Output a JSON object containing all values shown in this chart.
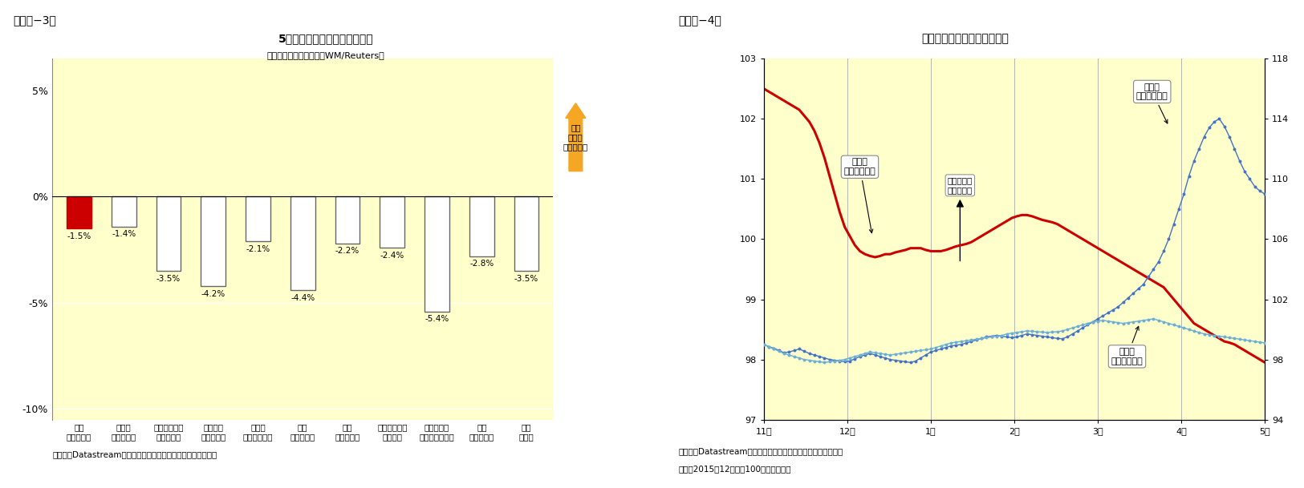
{
  "fig3": {
    "title": "5月の主要新興国通貨の変化率",
    "subtitle": "（対米ドル、前月末比、WM/Reuters）",
    "categories": [
      "中国\n（人民元）",
      "インド\n（ルピー）",
      "インドネシア\n（ルピア）",
      "ブラジル\n（レアル）",
      "ロシア\n（ルーブル）",
      "韓国\n（ウォン）",
      "タイ\n（バーツ）",
      "シンガポール\n（ドル）",
      "マレーシア\n（リンギット）",
      "欧州\n（ユーロ）",
      "日本\n（円）"
    ],
    "values": [
      -1.5,
      -1.4,
      -3.5,
      -4.2,
      -2.1,
      -4.4,
      -2.2,
      -2.4,
      -5.4,
      -2.8,
      -3.5
    ],
    "bar_colors": [
      "#cc0000",
      "#ffffff",
      "#ffffff",
      "#ffffff",
      "#ffffff",
      "#ffffff",
      "#ffffff",
      "#ffffff",
      "#ffffff",
      "#ffffff",
      "#ffffff"
    ],
    "bar_edgecolors": [
      "#cc0000",
      "#666666",
      "#666666",
      "#666666",
      "#666666",
      "#666666",
      "#666666",
      "#666666",
      "#666666",
      "#666666",
      "#666666"
    ],
    "ylim": [
      -10.5,
      6.5
    ],
    "yticks": [
      -10,
      -5,
      0,
      5
    ],
    "yticklabels": [
      "-10%",
      "-5%",
      "0%",
      "5%"
    ],
    "bg_color": "#ffffcc",
    "footnote": "（資料）Datastreamのデータを元にニッセイ基礎研究所で作成",
    "arrow_label": "自国\n通貨高\n（ドル安）",
    "arrow_color": "#f5a623"
  },
  "fig4": {
    "title": "人民元と他通貨（対米ドル）",
    "xlabels": [
      "11月",
      "12月",
      "1月",
      "2月",
      "3月",
      "4月",
      "5月"
    ],
    "ylim_left": [
      97,
      103
    ],
    "ylim_right": [
      94,
      118
    ],
    "yticks_left": [
      97,
      98,
      99,
      100,
      101,
      102,
      103
    ],
    "yticks_right": [
      94,
      98,
      102,
      106,
      110,
      114,
      118
    ],
    "footnote1": "（資料）Datastreamのデータを元にニッセイ基礎研究所で作成",
    "footnote2": "（注）2015年12月末＝100として指数化",
    "renminbi_label": "人民元\n（左目盛り）",
    "jpy_label": "日本円\n（右目盛り）",
    "euro_label": "ユーロ\n（右目盛り）",
    "arrow_label": "自国通貨高\n（ドル安）",
    "bg_color": "#ffffcc",
    "renminbi_color": "#cc0000",
    "jpy_color": "#4472c4",
    "euro_color": "#6baed6",
    "renminbi_data": [
      102.5,
      102.45,
      102.4,
      102.35,
      102.3,
      102.25,
      102.2,
      102.15,
      102.05,
      101.95,
      101.8,
      101.6,
      101.35,
      101.05,
      100.75,
      100.45,
      100.2,
      100.05,
      99.9,
      99.8,
      99.75,
      99.72,
      99.7,
      99.72,
      99.75,
      99.75,
      99.78,
      99.8,
      99.82,
      99.85,
      99.85,
      99.85,
      99.82,
      99.8,
      99.8,
      99.8,
      99.82,
      99.85,
      99.88,
      99.9,
      99.92,
      99.95,
      100.0,
      100.05,
      100.1,
      100.15,
      100.2,
      100.25,
      100.3,
      100.35,
      100.38,
      100.4,
      100.4,
      100.38,
      100.35,
      100.32,
      100.3,
      100.28,
      100.25,
      100.2,
      100.15,
      100.1,
      100.05,
      100.0,
      99.95,
      99.9,
      99.85,
      99.8,
      99.75,
      99.7,
      99.65,
      99.6,
      99.55,
      99.5,
      99.45,
      99.4,
      99.35,
      99.3,
      99.25,
      99.2,
      99.1,
      99.0,
      98.9,
      98.8,
      98.7,
      98.6,
      98.55,
      98.5,
      98.45,
      98.4,
      98.35,
      98.3,
      98.28,
      98.25,
      98.2,
      98.15,
      98.1,
      98.05,
      98.0,
      97.95
    ],
    "jpy_data": [
      99.0,
      98.85,
      98.75,
      98.6,
      98.45,
      98.5,
      98.6,
      98.7,
      98.55,
      98.4,
      98.3,
      98.2,
      98.1,
      98.0,
      97.95,
      97.9,
      97.85,
      97.9,
      98.05,
      98.2,
      98.3,
      98.4,
      98.3,
      98.2,
      98.1,
      98.0,
      97.95,
      97.9,
      97.85,
      97.8,
      97.9,
      98.1,
      98.3,
      98.5,
      98.6,
      98.7,
      98.8,
      98.9,
      98.95,
      99.0,
      99.1,
      99.2,
      99.3,
      99.4,
      99.5,
      99.55,
      99.6,
      99.55,
      99.5,
      99.45,
      99.5,
      99.6,
      99.7,
      99.65,
      99.6,
      99.55,
      99.5,
      99.45,
      99.4,
      99.38,
      99.5,
      99.7,
      99.9,
      100.1,
      100.3,
      100.5,
      100.7,
      100.9,
      101.1,
      101.3,
      101.5,
      101.8,
      102.1,
      102.4,
      102.7,
      103.0,
      103.5,
      104.0,
      104.5,
      105.2,
      106.0,
      107.0,
      108.0,
      109.0,
      110.2,
      111.2,
      112.0,
      112.8,
      113.4,
      113.8,
      114.0,
      113.5,
      112.8,
      112.0,
      111.2,
      110.5,
      110.0,
      109.5,
      109.2,
      109.0
    ],
    "euro_data": [
      99.0,
      98.85,
      98.7,
      98.55,
      98.4,
      98.3,
      98.2,
      98.1,
      98.0,
      97.95,
      97.9,
      97.85,
      97.8,
      97.85,
      97.9,
      97.95,
      98.0,
      98.1,
      98.2,
      98.3,
      98.4,
      98.5,
      98.45,
      98.4,
      98.35,
      98.3,
      98.35,
      98.4,
      98.45,
      98.5,
      98.55,
      98.6,
      98.65,
      98.7,
      98.8,
      98.9,
      99.0,
      99.1,
      99.15,
      99.2,
      99.25,
      99.3,
      99.35,
      99.4,
      99.45,
      99.5,
      99.55,
      99.6,
      99.7,
      99.75,
      99.8,
      99.85,
      99.9,
      99.88,
      99.85,
      99.82,
      99.8,
      99.82,
      99.85,
      99.9,
      100.0,
      100.1,
      100.2,
      100.3,
      100.4,
      100.5,
      100.55,
      100.6,
      100.55,
      100.5,
      100.45,
      100.4,
      100.45,
      100.5,
      100.55,
      100.6,
      100.65,
      100.7,
      100.6,
      100.5,
      100.4,
      100.3,
      100.2,
      100.1,
      100.0,
      99.9,
      99.8,
      99.7,
      99.65,
      99.6,
      99.55,
      99.5,
      99.45,
      99.4,
      99.35,
      99.3,
      99.25,
      99.2,
      99.15,
      99.1
    ]
  }
}
